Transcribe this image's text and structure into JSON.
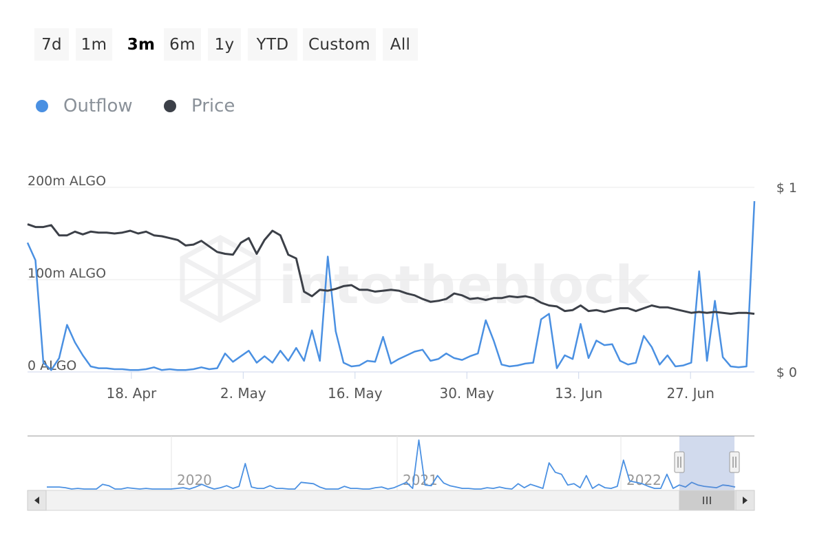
{
  "range_selector": {
    "buttons": [
      "7d",
      "1m",
      "3m",
      "6m",
      "1y",
      "YTD",
      "Custom",
      "All"
    ],
    "selected": "3m"
  },
  "legend": [
    {
      "label": "Outflow",
      "color": "#4a90e2"
    },
    {
      "label": "Price",
      "color": "#3c4048"
    }
  ],
  "watermark": "intotheblock",
  "chart_data": {
    "type": "line",
    "x": {
      "start_date": "2022-04-05",
      "end_date": "2022-07-05",
      "tick_labels": [
        "18. Apr",
        "2. May",
        "16. May",
        "30. May",
        "13. Jun",
        "27. Jun"
      ]
    },
    "left_axis": {
      "tick_labels": [
        "0 ALGO",
        "100m ALGO",
        "200m ALGO"
      ],
      "ylim": [
        0,
        200
      ]
    },
    "right_axis": {
      "tick_labels": [
        "$ 0",
        "$ 1"
      ],
      "ylim": [
        0,
        1
      ]
    },
    "series": [
      {
        "name": "Outflow",
        "axis": "left",
        "color": "#4a90e2",
        "values": [
          140,
          121,
          10,
          2,
          15,
          51,
          32,
          18,
          6,
          4,
          4,
          3,
          3,
          2,
          2,
          3,
          5,
          2,
          3,
          2,
          2,
          3,
          5,
          3,
          4,
          20,
          11,
          17,
          23,
          10,
          17,
          10,
          23,
          12,
          26,
          12,
          45,
          12,
          125,
          44,
          10,
          6,
          7,
          12,
          11,
          38,
          9,
          14,
          18,
          22,
          24,
          12,
          14,
          20,
          15,
          13,
          17,
          20,
          56,
          34,
          8,
          6,
          7,
          9,
          10,
          57,
          63,
          4,
          18,
          14,
          52,
          15,
          34,
          29,
          30,
          12,
          8,
          10,
          39,
          27,
          8,
          18,
          6,
          7,
          10,
          109,
          12,
          77,
          16,
          6,
          5,
          6,
          185
        ]
      },
      {
        "name": "Price",
        "axis": "left",
        "color": "#3c4048",
        "values": [
          160,
          157,
          157,
          159,
          148,
          148,
          152,
          149,
          152,
          151,
          151,
          150,
          151,
          153,
          150,
          152,
          148,
          147,
          145,
          143,
          137,
          138,
          142,
          136,
          130,
          128,
          127,
          140,
          145,
          128,
          143,
          153,
          148,
          127,
          123,
          87,
          82,
          89,
          88,
          90,
          93,
          94,
          89,
          89,
          87,
          88,
          89,
          88,
          85,
          83,
          79,
          76,
          77,
          79,
          85,
          83,
          79,
          80,
          78,
          80,
          80,
          82,
          81,
          82,
          80,
          75,
          72,
          71,
          66,
          67,
          72,
          66,
          67,
          65,
          67,
          69,
          69,
          66,
          69,
          72,
          70,
          70,
          68,
          66,
          64,
          65,
          64,
          65,
          64,
          63,
          64,
          64,
          63
        ]
      }
    ],
    "navigator": {
      "tick_labels": [
        "2020",
        "2021",
        "2022"
      ],
      "values": [
        5,
        5,
        5,
        4,
        2,
        3,
        2,
        2,
        2,
        9,
        7,
        2,
        2,
        4,
        3,
        2,
        3,
        2,
        2,
        2,
        2,
        3,
        4,
        2,
        5,
        9,
        5,
        2,
        4,
        7,
        3,
        6,
        40,
        5,
        3,
        3,
        7,
        3,
        3,
        2,
        2,
        12,
        11,
        10,
        5,
        2,
        2,
        2,
        6,
        3,
        3,
        2,
        2,
        4,
        5,
        2,
        4,
        8,
        12,
        3,
        75,
        8,
        7,
        22,
        11,
        7,
        5,
        3,
        3,
        2,
        2,
        4,
        3,
        5,
        3,
        2,
        10,
        4,
        9,
        6,
        3,
        41,
        27,
        24,
        8,
        10,
        4,
        22,
        3,
        9,
        4,
        3,
        6,
        45,
        14,
        12,
        10,
        6,
        3,
        3,
        24,
        3,
        8,
        5,
        12,
        8,
        6,
        5,
        4,
        8,
        7,
        5
      ]
    }
  }
}
